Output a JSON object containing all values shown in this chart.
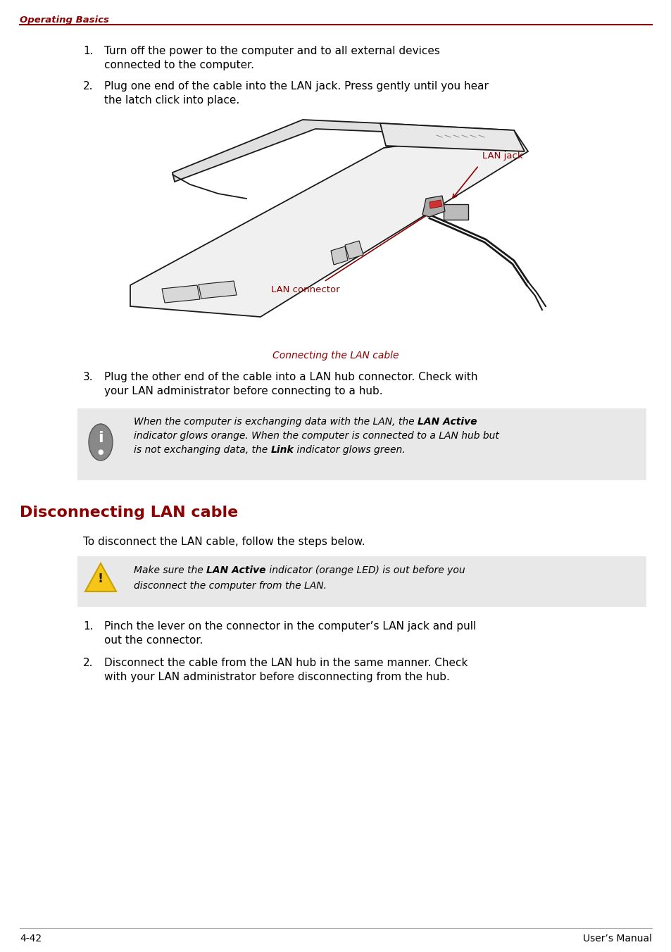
{
  "page_width": 9.54,
  "page_height": 13.52,
  "bg_color": "#ffffff",
  "header_text": "Operating Basics",
  "header_color": "#8B0000",
  "header_line_color": "#8B0000",
  "dark_red": "#8B0000",
  "black": "#000000",
  "gray_box_color": "#e8e8e8",
  "step1_text": "Turn off the power to the computer and to all external devices\nconnected to the computer.",
  "step2_text": "Plug one end of the cable into the LAN jack. Press gently until you hear\nthe latch click into place.",
  "caption_text": "Connecting the LAN cable",
  "step3_text": "Plug the other end of the cable into a LAN hub connector. Check with\nyour LAN administrator before connecting to a hub.",
  "section_title": "Disconnecting LAN cable",
  "intro_text": "To disconnect the LAN cable, follow the steps below.",
  "disc_step1": "Pinch the lever on the connector in the computer’s LAN jack and pull\nout the connector.",
  "disc_step2": "Disconnect the cable from the LAN hub in the same manner. Check\nwith your LAN administrator before disconnecting from the hub.",
  "footer_left": "4-42",
  "footer_right": "User’s Manual"
}
